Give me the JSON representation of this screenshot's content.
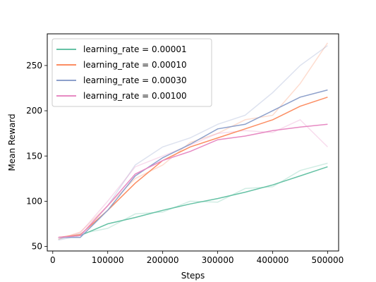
{
  "chart_data": {
    "type": "line",
    "title": "",
    "xlabel": "Steps",
    "ylabel": "Mean Reward",
    "xlim": [
      -10000,
      520000
    ],
    "ylim": [
      45,
      285
    ],
    "xticks": [
      0,
      100000,
      200000,
      300000,
      400000,
      500000
    ],
    "xtick_labels": [
      "0",
      "100000",
      "200000",
      "300000",
      "400000",
      "500000"
    ],
    "yticks": [
      50,
      100,
      150,
      200,
      250
    ],
    "ytick_labels": [
      "50",
      "100",
      "150",
      "200",
      "250"
    ],
    "grid": false,
    "legend_position": "upper-left",
    "x": [
      10000,
      50000,
      100000,
      150000,
      200000,
      250000,
      300000,
      350000,
      400000,
      450000,
      500000
    ],
    "series": [
      {
        "name": "learning_rate = 0.00001",
        "color": "#66c2a5",
        "values": [
          60,
          62,
          75,
          82,
          90,
          97,
          103,
          110,
          118,
          128,
          138
        ],
        "raw_values": [
          58,
          64,
          70,
          86,
          88,
          100,
          99,
          114,
          116,
          134,
          142
        ]
      },
      {
        "name": "learning_rate = 0.00010",
        "color": "#fc8d62",
        "values": [
          60,
          63,
          90,
          120,
          145,
          160,
          170,
          180,
          190,
          205,
          215
        ],
        "raw_values": [
          58,
          66,
          95,
          125,
          140,
          165,
          175,
          190,
          195,
          230,
          275
        ]
      },
      {
        "name": "learning_rate = 0.00030",
        "color": "#8da0cb",
        "values": [
          60,
          60,
          90,
          128,
          148,
          163,
          180,
          185,
          200,
          215,
          223
        ],
        "raw_values": [
          57,
          62,
          95,
          140,
          160,
          170,
          185,
          195,
          220,
          250,
          272
        ]
      },
      {
        "name": "learning_rate = 0.00100",
        "color": "#e78ac3",
        "values": [
          60,
          62,
          95,
          130,
          145,
          155,
          168,
          172,
          178,
          182,
          185
        ],
        "raw_values": [
          58,
          65,
          100,
          138,
          150,
          162,
          175,
          178,
          176,
          190,
          160
        ]
      }
    ]
  }
}
